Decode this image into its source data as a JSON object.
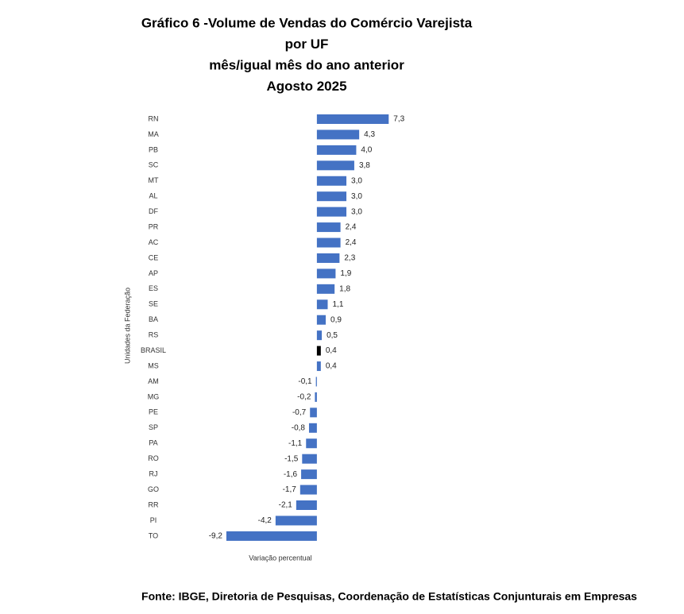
{
  "chart_data": {
    "type": "hbar",
    "title": [
      "Gráfico 6 -Volume de Vendas do Comércio Varejista",
      "por UF",
      "mês/igual mês do ano anterior",
      "Agosto 2025"
    ],
    "y_label": "Unidades da Federação",
    "x_label": "Variação percentual",
    "source": "Fonte: IBGE, Diretoria de Pesquisas, Coordenação de Estatísticas Conjunturais em Empresas",
    "categories": [
      "RN",
      "MA",
      "PB",
      "SC",
      "MT",
      "AL",
      "DF",
      "PR",
      "AC",
      "CE",
      "AP",
      "ES",
      "SE",
      "BA",
      "RS",
      "BRASIL",
      "MS",
      "AM",
      "MG",
      "PE",
      "SP",
      "PA",
      "RO",
      "RJ",
      "GO",
      "RR",
      "PI",
      "TO"
    ],
    "values": [
      7.3,
      4.3,
      4.0,
      3.8,
      3.0,
      3.0,
      3.0,
      2.4,
      2.4,
      2.3,
      1.9,
      1.8,
      1.1,
      0.9,
      0.5,
      0.4,
      0.4,
      -0.1,
      -0.2,
      -0.7,
      -0.8,
      -1.1,
      -1.5,
      -1.6,
      -1.7,
      -2.1,
      -4.2,
      -9.2
    ],
    "value_labels": [
      "7,3",
      "4,3",
      "4,0",
      "3,8",
      "3,0",
      "3,0",
      "3,0",
      "2,4",
      "2,4",
      "2,3",
      "1,9",
      "1,8",
      "1,1",
      "0,9",
      "0,5",
      "0,4",
      "0,4",
      "-0,1",
      "-0,2",
      "-0,7",
      "-0,8",
      "-1,1",
      "-1,5",
      "-1,6",
      "-1,7",
      "-2,1",
      "-4,2",
      "-9,2"
    ],
    "colors": [
      "#4472c4",
      "#4472c4",
      "#4472c4",
      "#4472c4",
      "#4472c4",
      "#4472c4",
      "#4472c4",
      "#4472c4",
      "#4472c4",
      "#4472c4",
      "#4472c4",
      "#4472c4",
      "#4472c4",
      "#4472c4",
      "#4472c4",
      "#000000",
      "#4472c4",
      "#4472c4",
      "#4472c4",
      "#4472c4",
      "#4472c4",
      "#4472c4",
      "#4472c4",
      "#4472c4",
      "#4472c4",
      "#4472c4",
      "#4472c4",
      "#4472c4"
    ],
    "xlim": [
      -9.3,
      7.6
    ]
  }
}
